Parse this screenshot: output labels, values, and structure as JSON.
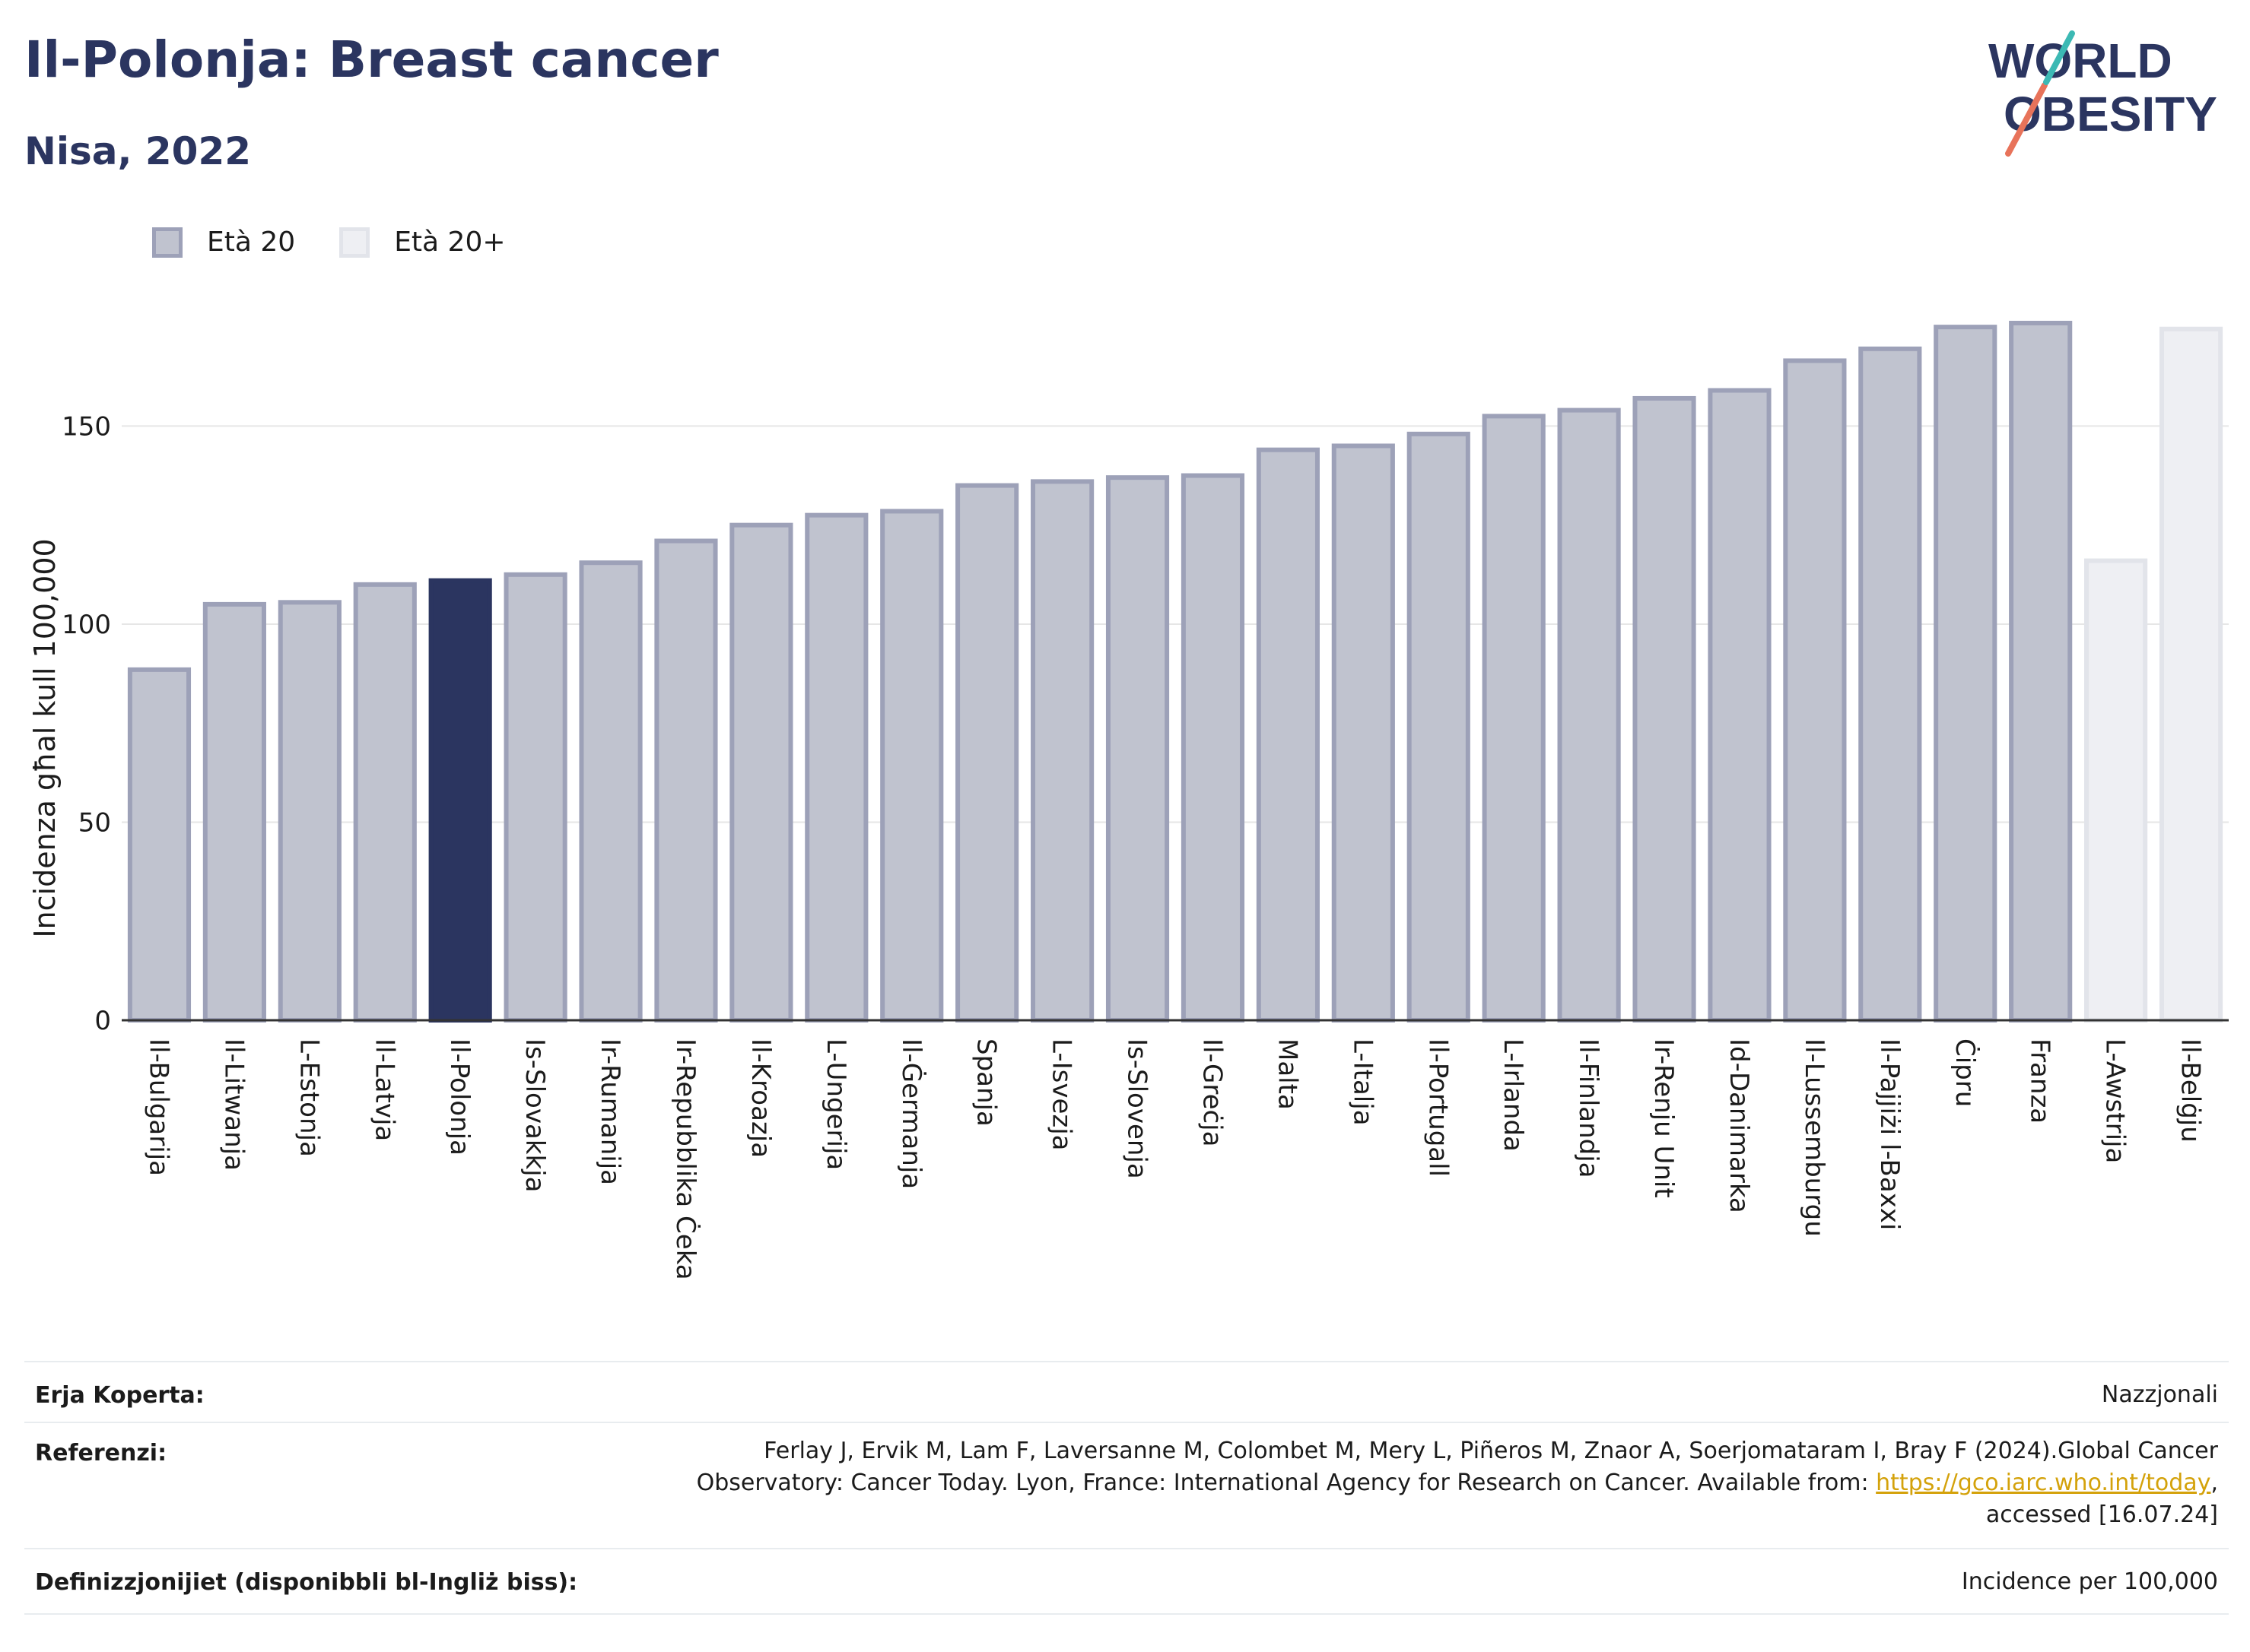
{
  "header": {
    "title": "Il-Polonja: Breast cancer",
    "subtitle": "Nisa, 2022"
  },
  "logo": {
    "line1": "WORLD",
    "line2": "OBESITY",
    "icon": "world-obesity-logo"
  },
  "legend": {
    "items": [
      {
        "label": "Età 20",
        "color": "#c0c3cf",
        "border": "#9da1b8"
      },
      {
        "label": "Età 20+",
        "color": "#eeeff3",
        "border": "#e2e4ea"
      }
    ]
  },
  "chart_data": {
    "type": "bar",
    "ylabel": "Incidenza għal kull 100,000",
    "xlabel": "",
    "ylim": [
      0,
      190
    ],
    "yticks": [
      0,
      50,
      100,
      150
    ],
    "grid": true,
    "legend_position": "top-left",
    "highlight_color": "#2b3560",
    "series": [
      {
        "name": "Età 20",
        "color": "#c0c3cf"
      },
      {
        "name": "Età 20+",
        "color": "#eeeff3"
      }
    ],
    "categories": [
      "Il-Bulgarija",
      "Il-Litwanja",
      "L-Estonja",
      "Il-Latvja",
      "Il-Polonja",
      "Is-Slovakkja",
      "Ir-Rumanija",
      "Ir-Repubblika Ċeka",
      "Il-Kroazja",
      "L-Ungerija",
      "Il-Ġermanja",
      "Spanja",
      "L-Isvezja",
      "Is-Slovenja",
      "Il-Greċja",
      "Malta",
      "L-Italja",
      "Il-Portugall",
      "L-Irlanda",
      "Il-Finlandja",
      "Ir-Renju Unit",
      "Id-Danimarka",
      "Il-Lussemburgu",
      "Il-Pajjiżi l-Baxxi",
      "Ċipru",
      "Franza",
      "L-Awstrija",
      "Il-Belġju"
    ],
    "values": [
      88.5,
      105,
      105.5,
      110,
      111,
      112.5,
      115.5,
      121,
      125,
      127.5,
      128.5,
      135,
      136,
      137,
      137.5,
      144,
      145,
      148,
      152.5,
      154,
      157,
      159,
      166.5,
      169.5,
      175,
      176,
      116,
      174.5
    ],
    "groups": [
      "Età 20",
      "Età 20",
      "Età 20",
      "Età 20",
      "highlight",
      "Età 20",
      "Età 20",
      "Età 20",
      "Età 20",
      "Età 20",
      "Età 20",
      "Età 20",
      "Età 20",
      "Età 20",
      "Età 20",
      "Età 20",
      "Età 20",
      "Età 20",
      "Età 20",
      "Età 20",
      "Età 20",
      "Età 20",
      "Età 20",
      "Età 20",
      "Età 20",
      "Età 20",
      "Età 20+",
      "Età 20+"
    ]
  },
  "footer": {
    "coverage_label": "Erja Koperta:",
    "coverage_value": "Nazzjonali",
    "references_label": "Referenzi:",
    "references_line1": "Ferlay J, Ervik M, Lam F, Laversanne M, Colombet M, Mery L, Piñeros M, Znaor A, Soerjomataram I, Bray F (2024).Global Cancer",
    "references_line2_prefix": "Observatory: Cancer Today. Lyon, France: International Agency for Research on Cancer. Available from: ",
    "references_link": "https://gco.iarc.who.int/today",
    "references_line2_suffix": ",",
    "references_line3": "accessed [16.07.24]",
    "definitions_label": "Definizzjonijiet (disponibbli bl-Ingliż biss):",
    "definitions_value": "Incidence per 100,000"
  }
}
